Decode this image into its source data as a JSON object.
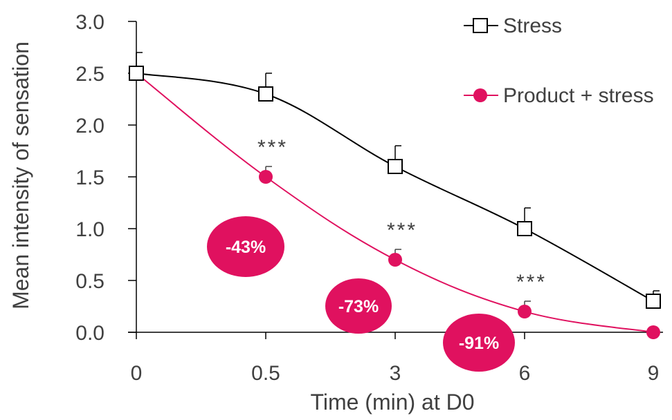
{
  "chart_data": {
    "type": "line",
    "x": [
      "0",
      "0.5",
      "3",
      "6",
      "9"
    ],
    "xlabel": "Time (min) at D0",
    "ylabel": "Mean intensity of sensation",
    "ylim": [
      0,
      3.0
    ],
    "yticks": [
      "0.0",
      "0.5",
      "1.0",
      "1.5",
      "2.0",
      "2.5",
      "3.0"
    ],
    "grid": false,
    "legend_position": "top-right",
    "series": [
      {
        "name": "Stress",
        "marker": "open-square",
        "color": "#000000",
        "values": [
          2.5,
          2.3,
          1.6,
          1.0,
          0.3
        ],
        "error_plus": [
          0.2,
          0.2,
          0.2,
          0.2,
          0.1
        ]
      },
      {
        "name": "Product + stress",
        "marker": "filled-circle",
        "color": "#e0115f",
        "values": [
          2.5,
          1.5,
          0.7,
          0.2,
          0.0
        ],
        "error_plus": [
          0.0,
          0.1,
          0.1,
          0.1,
          0.0
        ]
      }
    ],
    "significance": [
      {
        "x": "0.5",
        "label": "***"
      },
      {
        "x": "3",
        "label": "***"
      },
      {
        "x": "6",
        "label": "***"
      }
    ],
    "reduction_badges": [
      {
        "label": "-43%"
      },
      {
        "label": "-73%"
      },
      {
        "label": "-91%"
      }
    ]
  },
  "colors": {
    "accent": "#e0115f",
    "axis": "#000000",
    "text": "#404040",
    "significance": "#404040"
  }
}
